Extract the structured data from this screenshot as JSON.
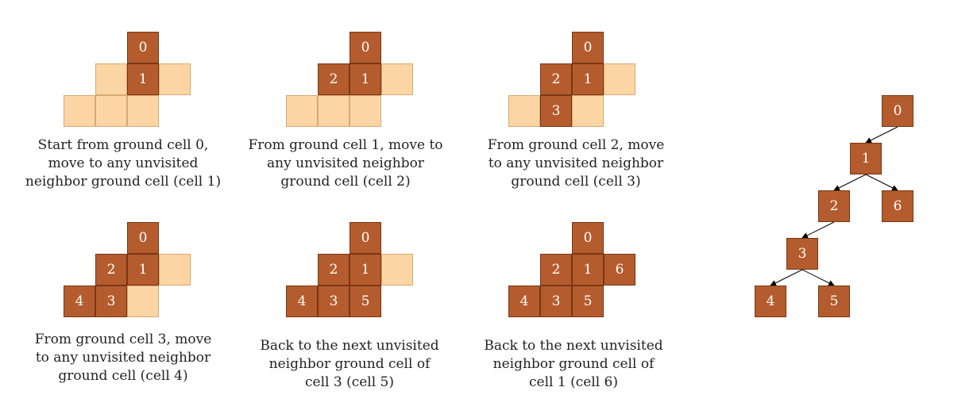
{
  "panels": [
    {
      "caption": [
        "Start from ground cell 0,",
        "move to any unvisited",
        "neighbor ground cell (cell 1)"
      ],
      "cells": [
        {
          "c": 2,
          "r": 0,
          "state": "visited",
          "label": "0"
        },
        {
          "c": 1,
          "r": 1,
          "state": "ground",
          "label": ""
        },
        {
          "c": 2,
          "r": 1,
          "state": "visited",
          "label": "1"
        },
        {
          "c": 3,
          "r": 1,
          "state": "ground",
          "label": ""
        },
        {
          "c": 0,
          "r": 2,
          "state": "ground",
          "label": ""
        },
        {
          "c": 1,
          "r": 2,
          "state": "ground",
          "label": ""
        },
        {
          "c": 2,
          "r": 2,
          "state": "ground",
          "label": ""
        }
      ]
    },
    {
      "caption": [
        "From ground cell 1, move to",
        "any unvisited neighbor",
        "ground cell (cell 2)"
      ],
      "cells": [
        {
          "c": 2,
          "r": 0,
          "state": "visited",
          "label": "0"
        },
        {
          "c": 1,
          "r": 1,
          "state": "visited",
          "label": "2"
        },
        {
          "c": 2,
          "r": 1,
          "state": "visited",
          "label": "1"
        },
        {
          "c": 3,
          "r": 1,
          "state": "ground",
          "label": ""
        },
        {
          "c": 0,
          "r": 2,
          "state": "ground",
          "label": ""
        },
        {
          "c": 1,
          "r": 2,
          "state": "ground",
          "label": ""
        },
        {
          "c": 2,
          "r": 2,
          "state": "ground",
          "label": ""
        }
      ]
    },
    {
      "caption": [
        "From ground cell 2, move",
        "to any unvisited neighbor",
        "ground cell (cell 3)"
      ],
      "cells": [
        {
          "c": 2,
          "r": 0,
          "state": "visited",
          "label": "0"
        },
        {
          "c": 1,
          "r": 1,
          "state": "visited",
          "label": "2"
        },
        {
          "c": 2,
          "r": 1,
          "state": "visited",
          "label": "1"
        },
        {
          "c": 3,
          "r": 1,
          "state": "ground",
          "label": ""
        },
        {
          "c": 0,
          "r": 2,
          "state": "ground",
          "label": ""
        },
        {
          "c": 1,
          "r": 2,
          "state": "visited",
          "label": "3"
        },
        {
          "c": 2,
          "r": 2,
          "state": "ground",
          "label": ""
        }
      ]
    },
    {
      "caption": [
        "From ground cell 3, move",
        "to any unvisited neighbor",
        "ground cell (cell 4)"
      ],
      "cells": [
        {
          "c": 2,
          "r": 0,
          "state": "visited",
          "label": "0"
        },
        {
          "c": 1,
          "r": 1,
          "state": "visited",
          "label": "2"
        },
        {
          "c": 2,
          "r": 1,
          "state": "visited",
          "label": "1"
        },
        {
          "c": 3,
          "r": 1,
          "state": "ground",
          "label": ""
        },
        {
          "c": 0,
          "r": 2,
          "state": "visited",
          "label": "4"
        },
        {
          "c": 1,
          "r": 2,
          "state": "visited",
          "label": "3"
        },
        {
          "c": 2,
          "r": 2,
          "state": "ground",
          "label": ""
        }
      ]
    },
    {
      "caption": [
        "Back to the next unvisited",
        "neighbor ground cell of",
        "cell 3 (cell 5)"
      ],
      "cells": [
        {
          "c": 2,
          "r": 0,
          "state": "visited",
          "label": "0"
        },
        {
          "c": 1,
          "r": 1,
          "state": "visited",
          "label": "2"
        },
        {
          "c": 2,
          "r": 1,
          "state": "visited",
          "label": "1"
        },
        {
          "c": 3,
          "r": 1,
          "state": "ground",
          "label": ""
        },
        {
          "c": 0,
          "r": 2,
          "state": "visited",
          "label": "4"
        },
        {
          "c": 1,
          "r": 2,
          "state": "visited",
          "label": "3"
        },
        {
          "c": 2,
          "r": 2,
          "state": "visited",
          "label": "5"
        }
      ]
    },
    {
      "caption": [
        "Back to the next unvisited",
        "neighbor ground cell of",
        "cell 1 (cell 6)"
      ],
      "cells": [
        {
          "c": 2,
          "r": 0,
          "state": "visited",
          "label": "0"
        },
        {
          "c": 1,
          "r": 1,
          "state": "visited",
          "label": "2"
        },
        {
          "c": 2,
          "r": 1,
          "state": "visited",
          "label": "1"
        },
        {
          "c": 3,
          "r": 1,
          "state": "visited",
          "label": "6"
        },
        {
          "c": 0,
          "r": 2,
          "state": "visited",
          "label": "4"
        },
        {
          "c": 1,
          "r": 2,
          "state": "visited",
          "label": "3"
        },
        {
          "c": 2,
          "r": 2,
          "state": "visited",
          "label": "5"
        }
      ]
    }
  ],
  "tree": {
    "nodes": [
      {
        "id": "0",
        "label": "0"
      },
      {
        "id": "1",
        "label": "1"
      },
      {
        "id": "2",
        "label": "2"
      },
      {
        "id": "6",
        "label": "6"
      },
      {
        "id": "3",
        "label": "3"
      },
      {
        "id": "4",
        "label": "4"
      },
      {
        "id": "5",
        "label": "5"
      }
    ],
    "edges": [
      [
        "0",
        "1"
      ],
      [
        "1",
        "2"
      ],
      [
        "1",
        "6"
      ],
      [
        "2",
        "3"
      ],
      [
        "3",
        "4"
      ],
      [
        "3",
        "5"
      ]
    ]
  },
  "colors": {
    "visited": "#b45c2e",
    "ground": "#fcd5a5",
    "edge": "#000000"
  }
}
